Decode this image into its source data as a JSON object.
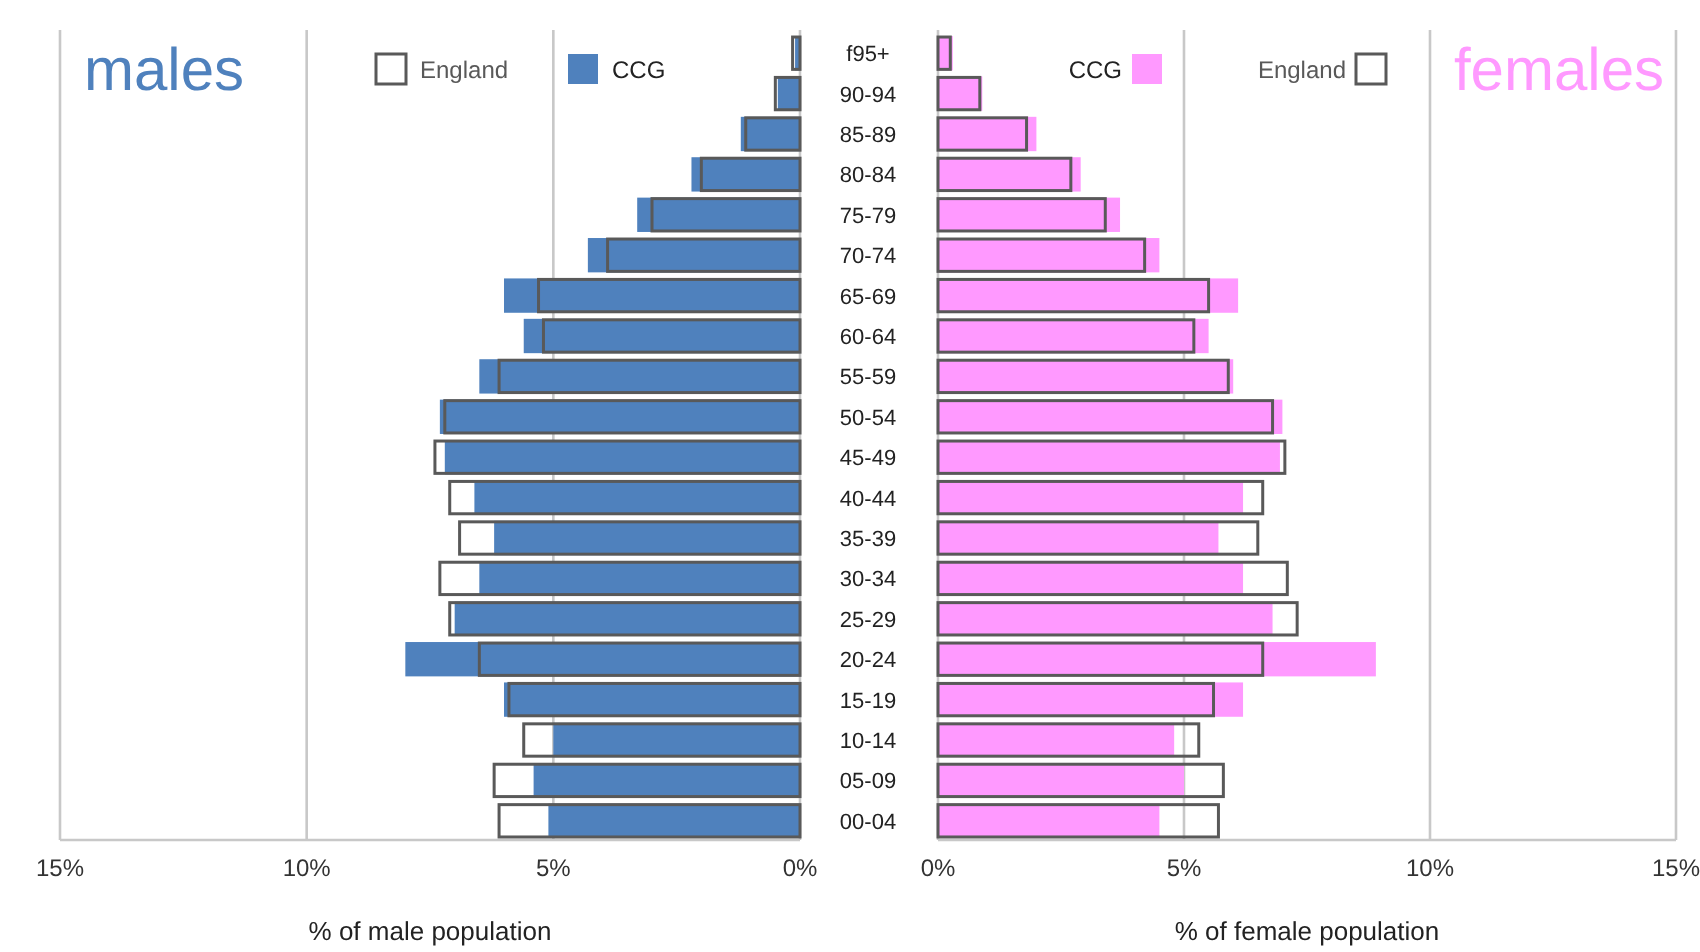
{
  "chart_data": [
    {
      "type": "bar",
      "title": "males",
      "xlabel": "% of male population",
      "orientation": "horizontal",
      "tick_labels": "x",
      "grid": "x",
      "legend": "top",
      "categories": [
        "f95+",
        "90-94",
        "85-89",
        "80-84",
        "75-79",
        "70-74",
        "65-69",
        "60-64",
        "55-59",
        "50-54",
        "45-49",
        "40-44",
        "35-39",
        "30-34",
        "25-29",
        "20-24",
        "15-19",
        "10-14",
        "05-09",
        "00-04"
      ],
      "xlim": [
        15,
        0
      ],
      "xticks": [
        {
          "value": 15,
          "label": "15%"
        },
        {
          "value": 10,
          "label": "10%"
        },
        {
          "value": 5,
          "label": "5%"
        },
        {
          "value": 0,
          "label": "0%"
        }
      ],
      "series": [
        {
          "name": "CCG",
          "color": "#4f81bd",
          "values": [
            0.1,
            0.45,
            1.2,
            2.2,
            3.3,
            4.3,
            6.0,
            5.6,
            6.5,
            7.3,
            7.2,
            6.6,
            6.2,
            6.5,
            7.0,
            8.0,
            6.0,
            5.0,
            5.4,
            5.1
          ]
        },
        {
          "name": "England",
          "color": "#595959",
          "values": [
            0.15,
            0.5,
            1.1,
            2.0,
            3.0,
            3.9,
            5.3,
            5.2,
            6.1,
            7.2,
            7.4,
            7.1,
            6.9,
            7.3,
            7.1,
            6.5,
            5.9,
            5.6,
            6.2,
            6.1
          ]
        }
      ]
    },
    {
      "type": "bar",
      "title": "females",
      "xlabel": "% of female population",
      "orientation": "horizontal",
      "grid": "x",
      "legend": "top",
      "categories": [
        "f95+",
        "90-94",
        "85-89",
        "80-84",
        "75-79",
        "70-74",
        "65-69",
        "60-64",
        "55-59",
        "50-54",
        "45-49",
        "40-44",
        "35-39",
        "30-34",
        "25-29",
        "20-24",
        "15-19",
        "10-14",
        "05-09",
        "00-04"
      ],
      "xlim": [
        0,
        15
      ],
      "xticks": [
        {
          "value": 0,
          "label": "0%"
        },
        {
          "value": 5,
          "label": "5%"
        },
        {
          "value": 10,
          "label": "10%"
        },
        {
          "value": 15,
          "label": "15%"
        }
      ],
      "series": [
        {
          "name": "CCG",
          "color": "#ff99ff",
          "values": [
            0.3,
            0.9,
            2.0,
            2.9,
            3.7,
            4.5,
            6.1,
            5.5,
            6.0,
            7.0,
            6.95,
            6.2,
            5.7,
            6.2,
            6.8,
            8.9,
            6.2,
            4.8,
            5.0,
            4.5
          ]
        },
        {
          "name": "England",
          "color": "#595959",
          "values": [
            0.25,
            0.85,
            1.8,
            2.7,
            3.4,
            4.2,
            5.5,
            5.2,
            5.9,
            6.8,
            7.05,
            6.6,
            6.5,
            7.1,
            7.3,
            6.6,
            5.6,
            5.3,
            5.8,
            5.7
          ]
        }
      ]
    }
  ]
}
